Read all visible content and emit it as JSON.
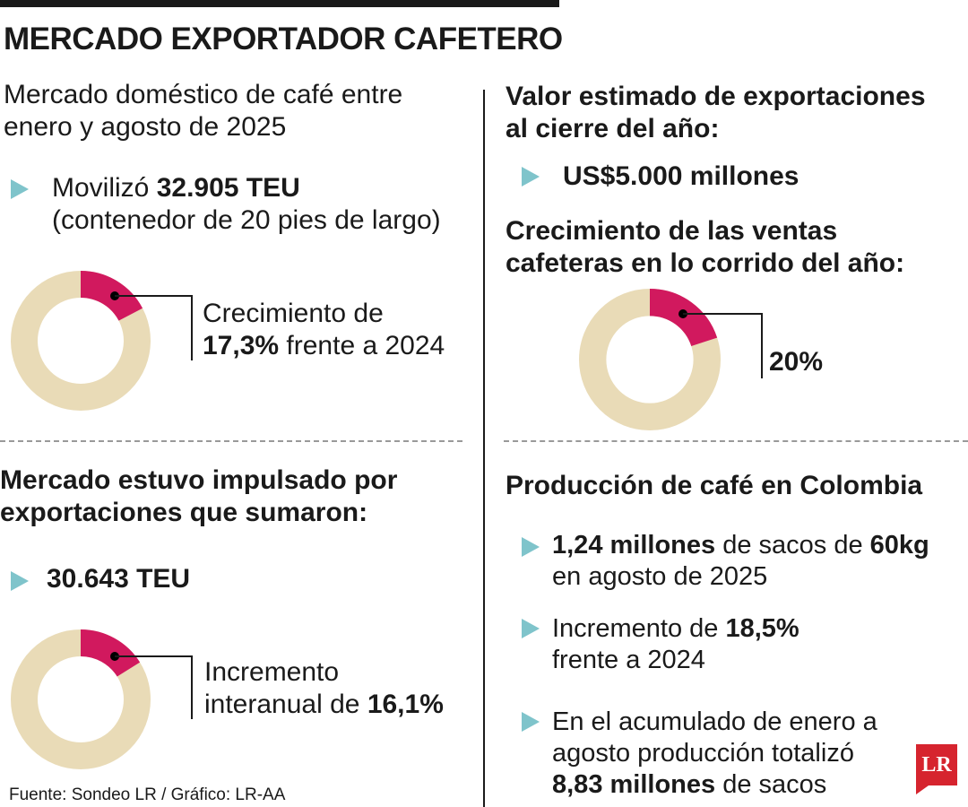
{
  "title": "MERCADO EXPORTADOR CAFETERO",
  "colors": {
    "accent": "#d1195e",
    "track": "#e9dbb7",
    "bullet": "#7fc4cb",
    "logo": "#d6242e"
  },
  "left_top": {
    "heading_line1": "Mercado doméstico de café entre",
    "heading_line2": "enero y agosto de 2025",
    "bullet_pre": "Movilizó ",
    "bullet_value": "32.905 TEU",
    "bullet_line2": "(contenedor de 20 pies de largo)",
    "donut_percent": 17.3,
    "donut_text_line1": "Crecimiento de",
    "donut_value": "17,3%",
    "donut_text_post": " frente a 2024"
  },
  "right_top": {
    "heading_line1": "Valor estimado de exportaciones",
    "heading_line2": "al cierre del año:",
    "bullet_value": "US$5.000 millones",
    "subheading_line1": "Crecimiento de las ventas",
    "subheading_line2": "cafeteras en lo corrido del año:",
    "donut_percent": 20,
    "donut_value": "20%"
  },
  "left_bottom": {
    "heading_line1": "Mercado estuvo impulsado por",
    "heading_line2": "exportaciones que sumaron:",
    "bullet_value": "30.643 TEU",
    "donut_percent": 16.1,
    "donut_text_line1": "Incremento",
    "donut_text_pre": "interanual de ",
    "donut_value": "16,1%"
  },
  "right_bottom": {
    "heading": "Producción de café en Colombia",
    "item1_value": "1,24 millones",
    "item1_mid": " de sacos de ",
    "item1_unit": "60kg",
    "item1_line2": "en agosto de 2025",
    "item2_pre": "Incremento de ",
    "item2_value": "18,5%",
    "item2_line2": "frente a 2024",
    "item3_line1": "En el acumulado de enero a",
    "item3_line2": "agosto producción totalizó",
    "item3_value": "8,83 millones",
    "item3_post": " de sacos"
  },
  "source": "Fuente: Sondeo LR / Gráfico: LR-AA",
  "logo": "LR"
}
